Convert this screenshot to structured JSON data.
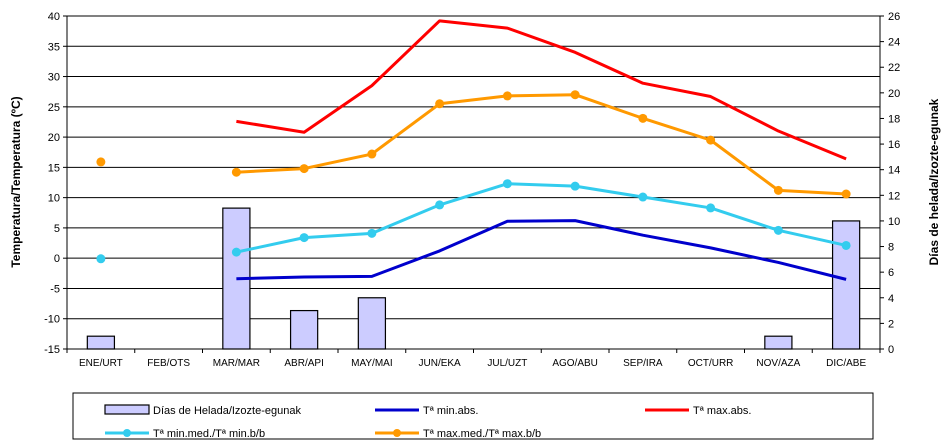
{
  "chart_data": {
    "type": "bar+line",
    "categories": [
      "ENE/URT",
      "FEB/OTS",
      "MAR/MAR",
      "ABR/API",
      "MAY/MAI",
      "JUN/EKA",
      "JUL/UZT",
      "AGO/ABU",
      "SEP/IRA",
      "OCT/URR",
      "NOV/AZA",
      "DIC/ABE"
    ],
    "ylabel": "Temperatura/Temperatura (ºC)",
    "ylabel_right": "Días de helada/Izozte-egunak",
    "ylim": [
      -15,
      40
    ],
    "ylim_right": [
      0,
      26
    ],
    "yticks": [
      "40",
      "35",
      "30",
      "25",
      "20",
      "15",
      "10",
      "5",
      "0",
      "-5",
      "-10",
      "-15"
    ],
    "yticks_right": [
      "26",
      "24",
      "22",
      "20",
      "18",
      "16",
      "14",
      "12",
      "10",
      "8",
      "6",
      "4",
      "2",
      "0"
    ],
    "grid": true,
    "legend_position": "bottom",
    "series": [
      {
        "name": "Días de Helada/Izozte-egunak",
        "type": "bar",
        "axis": "right",
        "color": "#ccccff",
        "values": [
          1,
          null,
          11,
          3,
          4,
          null,
          null,
          null,
          null,
          null,
          1,
          10
        ]
      },
      {
        "name": "Tª min.abs.",
        "type": "line",
        "axis": "left",
        "color": "#0000cc",
        "marker": false,
        "values": [
          null,
          null,
          -3.4,
          -3.1,
          -3.0,
          1.2,
          6.1,
          6.2,
          3.8,
          1.7,
          -0.7,
          -3.5
        ]
      },
      {
        "name": "Tª max.abs.",
        "type": "line",
        "axis": "left",
        "color": "#ff0000",
        "marker": false,
        "values": [
          null,
          null,
          22.6,
          20.8,
          28.5,
          39.2,
          38.0,
          34.0,
          28.9,
          26.7,
          21.0,
          16.4
        ]
      },
      {
        "name": "Tª min.med./Tª min.b/b",
        "type": "line",
        "axis": "left",
        "color": "#33ccee",
        "marker": true,
        "values": [
          -0.1,
          null,
          1.0,
          3.4,
          4.1,
          8.8,
          12.3,
          11.9,
          10.1,
          8.3,
          4.6,
          2.1
        ]
      },
      {
        "name": "Tª max.med./Tª max.b/b",
        "type": "line",
        "axis": "left",
        "color": "#ff9900",
        "marker": true,
        "values": [
          15.9,
          null,
          14.2,
          14.8,
          17.2,
          25.5,
          26.8,
          27.0,
          23.1,
          19.5,
          11.2,
          10.6
        ]
      }
    ]
  }
}
